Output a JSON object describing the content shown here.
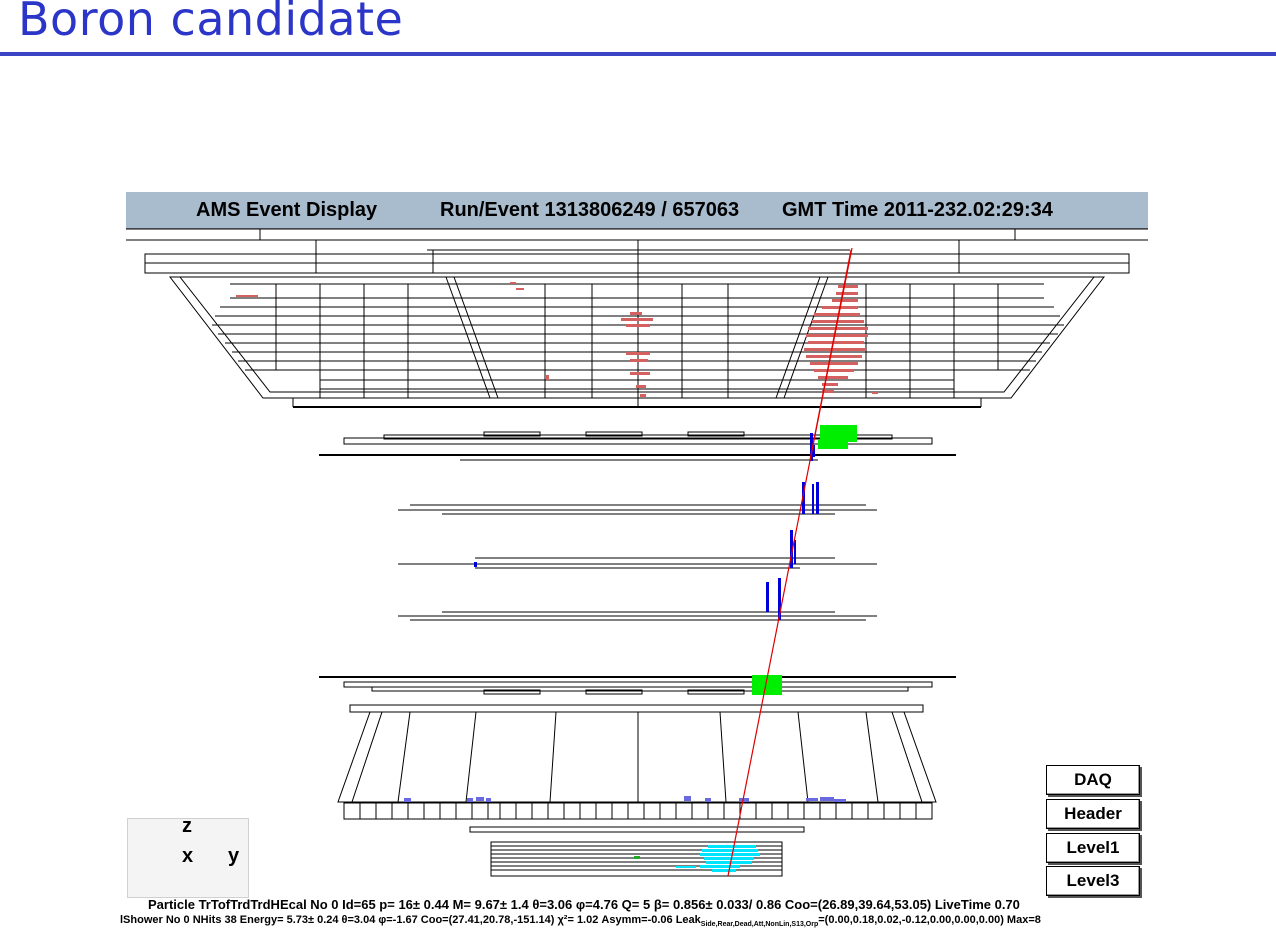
{
  "slide": {
    "title": "Boron candidate"
  },
  "header": {
    "app_title": "AMS Event Display",
    "run_event": "Run/Event 1313806249 / 657063",
    "gmt_time": "GMT Time 2011-232.02:29:34"
  },
  "buttons": [
    {
      "label": "DAQ"
    },
    {
      "label": "Header"
    },
    {
      "label": "Level1"
    },
    {
      "label": "Level3"
    }
  ],
  "axes": {
    "z": "z",
    "x": "x",
    "y": "y"
  },
  "particle_line": "Particle TrTofTrdTrdHEcal No 0 Id=65 p=    16±  0.44 M=   9.67±   1.4 θ=3.06 φ=4.76 Q= 5  β= 0.856± 0.033/  0.86  Coo=(26.89,39.64,53.05) LiveTime 0.70",
  "shower_line": {
    "main": "lShower No 0 NHits 38 Energy=   5.73± 0.24  θ=3.04 φ=-1.67 Coo=(27.41,20.78,-151.14) χ²=   1.02 Asymm=-0.06 Leak",
    "leak_sub": "Side,Rear,Dead,Att,NonLin,S13,Orp",
    "tail": "=(0.00,0.18,0.02,-0.12,0.00,0.00,0.00) Max=8"
  },
  "colors": {
    "title": "#2b35c8",
    "header_bg": "#a9bccd",
    "track": "#e00000",
    "trd_hits": "#d46060",
    "tof_hits": "#00ee00",
    "tracker_hits": "#0000dd",
    "rich_hits": "#6a6ae0",
    "ecal_hits": "#00e5ff"
  }
}
